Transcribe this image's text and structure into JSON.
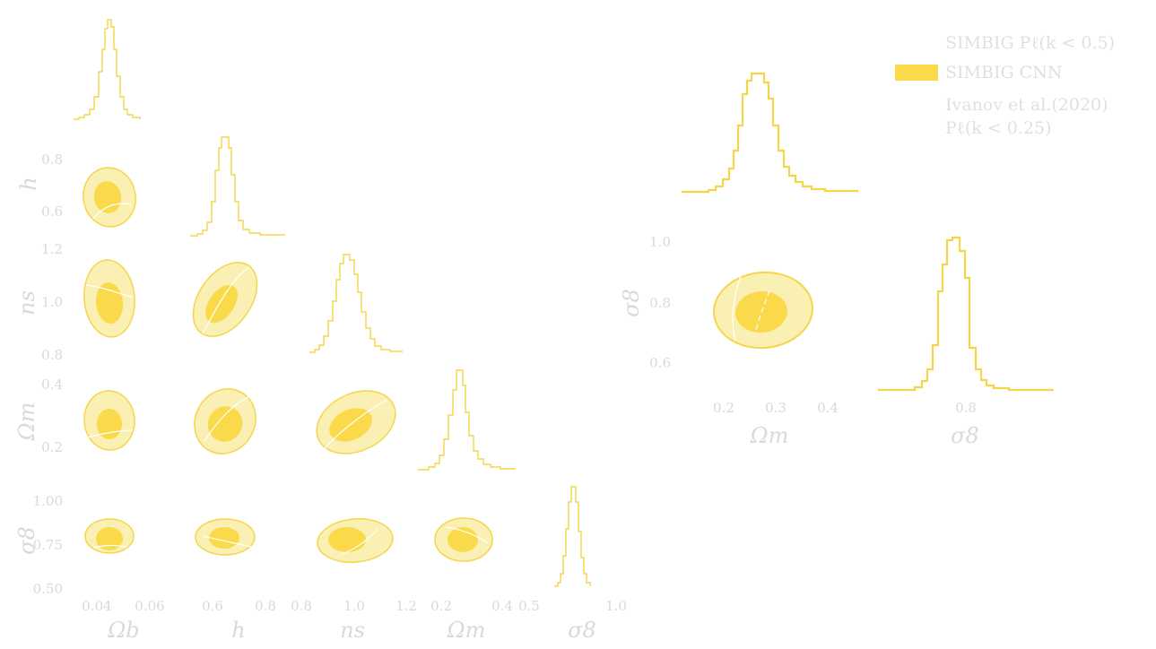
{
  "colors": {
    "fill_outer": "#fbf0b3",
    "fill_inner": "#fad94a",
    "line": "#f5d549",
    "light_contour": "#ffffff",
    "text": "#d9d9d9"
  },
  "legend": {
    "entry1": "SIMBIG Pℓ(k < 0.5)",
    "entry2": "SIMBIG CNN",
    "entry3_line1": "Ivanov et al.(2020)",
    "entry3_line2": "Pℓ(k < 0.25)"
  },
  "chart_data": [
    {
      "type": "corner",
      "params": [
        "Ωb",
        "h",
        "ns",
        "Ωm",
        "σ8"
      ],
      "axis_labels": {
        "Ωb": "Ωb",
        "h": "h",
        "ns": "ns",
        "Ωm": "Ωm",
        "σ8": "σ8"
      },
      "ranges": {
        "Ωb": [
          0.03,
          0.07
        ],
        "h": [
          0.5,
          0.9
        ],
        "ns": [
          0.8,
          1.2
        ],
        "Ωm": [
          0.15,
          0.45
        ],
        "σ8": [
          0.5,
          1.1
        ]
      },
      "ticks": {
        "Ωb": [
          "0.04",
          "0.06"
        ],
        "h": [
          "0.6",
          "0.8"
        ],
        "ns": [
          "0.8",
          "1.0",
          "1.2"
        ],
        "Ωm": [
          "0.2",
          "0.4"
        ],
        "σ8": [
          "0.5",
          "1.0"
        ]
      },
      "y_ticks": {
        "h": [
          "0.8",
          "0.6"
        ],
        "ns": [
          "1.2",
          "1.0",
          "0.8"
        ],
        "Ωm": [
          "0.4",
          "0.2"
        ],
        "σ8": [
          "1.00",
          "0.75",
          "0.50"
        ]
      },
      "posterior": {
        "Ωb": {
          "mean": 0.045,
          "sigma": 0.0025
        },
        "h": {
          "mean": 0.66,
          "sigma": 0.02
        },
        "ns": {
          "mean": 1.0,
          "sigma": 0.04
        },
        "Ωm": {
          "mean": 0.27,
          "sigma": 0.018
        },
        "σ8": {
          "mean": 0.76,
          "sigma": 0.02
        }
      }
    },
    {
      "type": "corner",
      "params": [
        "Ωm",
        "σ8"
      ],
      "axis_labels": {
        "Ωm": "Ωm",
        "σ8": "σ8"
      },
      "x_ticks": {
        "Ωm": [
          "0.2",
          "0.3",
          "0.4"
        ],
        "σ8": [
          "0.8"
        ]
      },
      "y_ticks": {
        "σ8": [
          "1.0",
          "0.8",
          "0.6"
        ]
      },
      "ranges": {
        "Ωm": [
          0.15,
          0.45
        ],
        "σ8": [
          0.5,
          1.1
        ]
      },
      "posterior": {
        "Ωm": {
          "mean": 0.27,
          "sigma": 0.022
        },
        "σ8": {
          "mean": 0.78,
          "sigma": 0.025
        }
      }
    }
  ]
}
